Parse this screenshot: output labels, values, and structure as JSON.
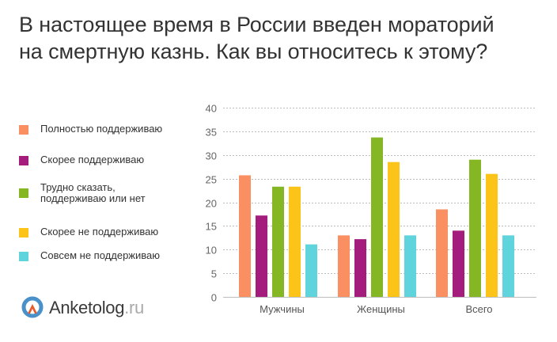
{
  "title": {
    "line1": "В настоящее время в России введен мораторий",
    "line2": "на смертную казнь. Как вы относитесь к этому?"
  },
  "legend": [
    {
      "label_lines": [
        "Полностью поддерживаю"
      ],
      "color": "#fa8f62"
    },
    {
      "label_lines": [
        "Скорее поддерживаю"
      ],
      "color": "#a51d7c"
    },
    {
      "label_lines": [
        "Трудно сказать,",
        "поддерживаю или нет"
      ],
      "color": "#84b723"
    },
    {
      "label_lines": [
        "Скорее не поддерживаю"
      ],
      "color": "#fcc419"
    },
    {
      "label_lines": [
        "Совсем не поддерживаю"
      ],
      "color": "#5fd4dc"
    }
  ],
  "logo": {
    "name": "Anketolog",
    "tld": ".ru",
    "icon": "anketolog-logo-icon"
  },
  "chart_data": {
    "type": "bar",
    "categories": [
      "Мужчины",
      "Женщины",
      "Всего"
    ],
    "series": [
      {
        "name": "Полностью поддерживаю",
        "values": [
          25.7,
          13.0,
          18.5
        ]
      },
      {
        "name": "Скорее поддерживаю",
        "values": [
          17.2,
          12.2,
          14.0
        ]
      },
      {
        "name": "Трудно сказать, поддерживаю или нет",
        "values": [
          23.3,
          33.7,
          29.0
        ]
      },
      {
        "name": "Скорее не поддерживаю",
        "values": [
          23.3,
          28.5,
          26.0
        ]
      },
      {
        "name": "Совсем не поддерживаю",
        "values": [
          11.1,
          13.0,
          13.0
        ]
      }
    ],
    "ylim": [
      0,
      40
    ],
    "yticks": [
      0,
      5,
      10,
      15,
      20,
      25,
      30,
      35,
      40
    ],
    "xlabel": "",
    "ylabel": "",
    "grid": true,
    "legend_position": "left"
  }
}
